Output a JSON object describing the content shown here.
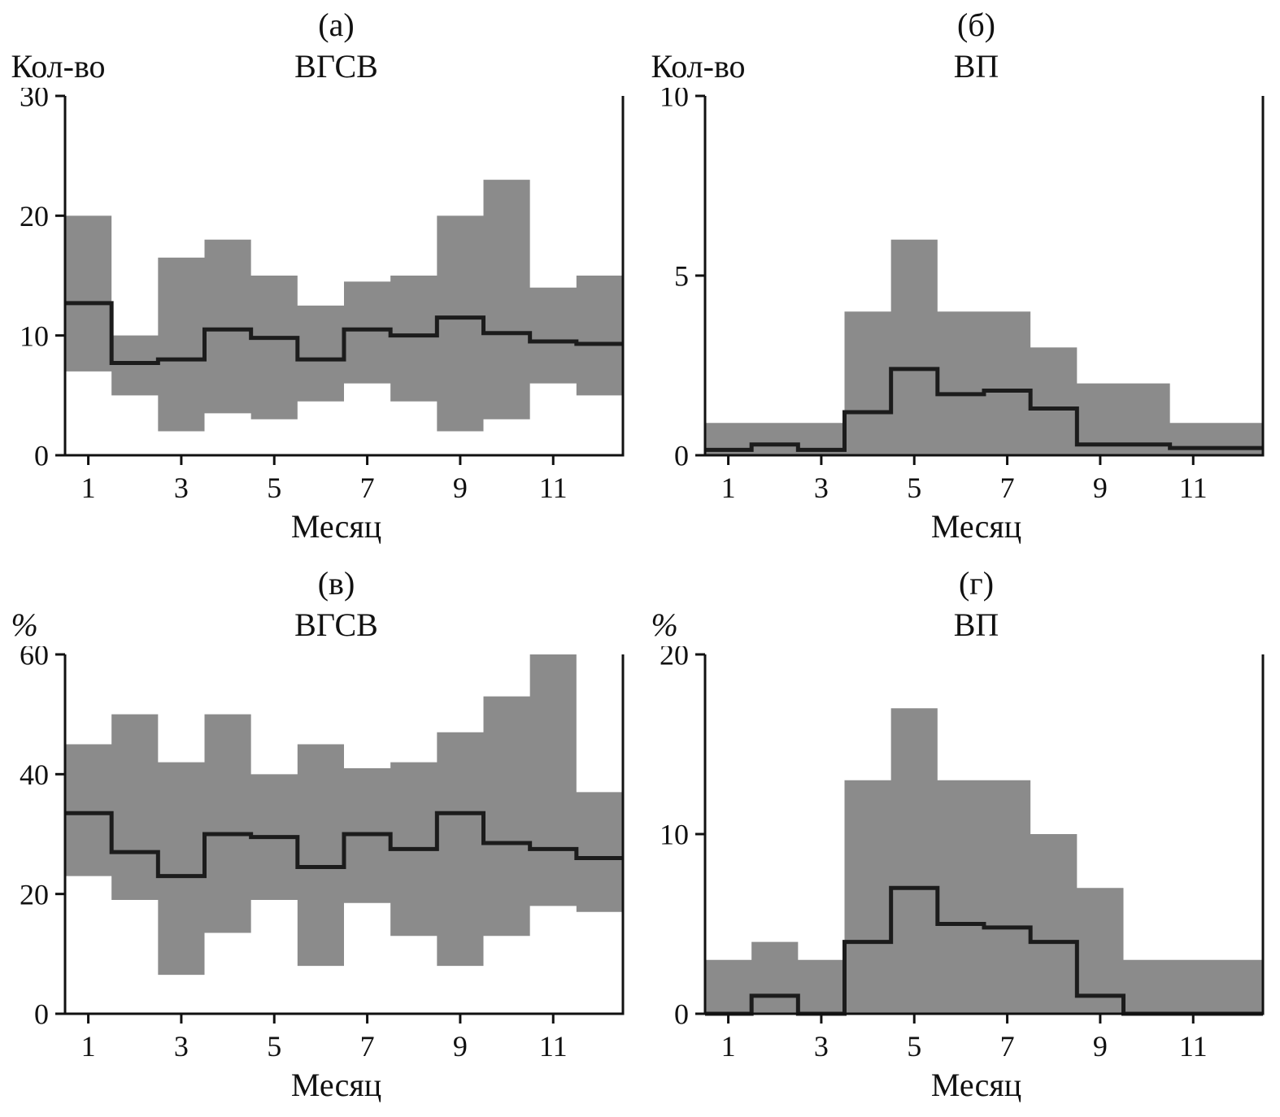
{
  "colors": {
    "band": "#8b8b8b",
    "line": "#1c1c1c",
    "axis": "#111111"
  },
  "chart_data": [
    {
      "type": "area",
      "panel_label": "(а)",
      "title": "ВГСВ",
      "ylabel": "Кол-во",
      "xlabel": "Месяц",
      "x": [
        1,
        2,
        3,
        4,
        5,
        6,
        7,
        8,
        9,
        10,
        11,
        12
      ],
      "xlim": [
        0.5,
        12.5
      ],
      "ylim": [
        0,
        30
      ],
      "yticks": [
        0,
        10,
        20,
        30
      ],
      "xticks": [
        1,
        3,
        5,
        7,
        9,
        11
      ],
      "upper": [
        20,
        10,
        16.5,
        18,
        15,
        12.5,
        14.5,
        15,
        20,
        23,
        14,
        15
      ],
      "mean": [
        12.7,
        7.7,
        8.0,
        10.5,
        9.8,
        8.0,
        10.5,
        10.0,
        11.5,
        10.2,
        9.5,
        9.3
      ],
      "lower": [
        7,
        5,
        2,
        3.5,
        3,
        4.5,
        6,
        4.5,
        2,
        3,
        6,
        5
      ]
    },
    {
      "type": "area",
      "panel_label": "(б)",
      "title": "ВП",
      "ylabel": "Кол-во",
      "xlabel": "Месяц",
      "x": [
        1,
        2,
        3,
        4,
        5,
        6,
        7,
        8,
        9,
        10,
        11,
        12
      ],
      "xlim": [
        0.5,
        12.5
      ],
      "ylim": [
        0,
        10
      ],
      "yticks": [
        0,
        5,
        10
      ],
      "xticks": [
        1,
        3,
        5,
        7,
        9,
        11
      ],
      "upper": [
        0.9,
        0.9,
        0.9,
        4,
        6,
        4,
        4,
        3,
        2,
        2,
        0.9,
        0.9
      ],
      "mean": [
        0.15,
        0.3,
        0.15,
        1.2,
        2.4,
        1.7,
        1.8,
        1.3,
        0.3,
        0.3,
        0.2,
        0.2
      ],
      "lower": [
        0,
        0,
        0,
        0,
        0,
        0,
        0,
        0,
        0,
        0,
        0,
        0
      ]
    },
    {
      "type": "area",
      "panel_label": "(в)",
      "title": "ВГСВ",
      "ylabel": "%",
      "xlabel": "Месяц",
      "x": [
        1,
        2,
        3,
        4,
        5,
        6,
        7,
        8,
        9,
        10,
        11,
        12
      ],
      "xlim": [
        0.5,
        12.5
      ],
      "ylim": [
        0,
        60
      ],
      "yticks": [
        0,
        20,
        40,
        60
      ],
      "xticks": [
        1,
        3,
        5,
        7,
        9,
        11
      ],
      "upper": [
        45,
        50,
        42,
        50,
        40,
        45,
        41,
        42,
        47,
        53,
        60,
        37
      ],
      "mean": [
        33.5,
        27,
        23,
        30,
        29.5,
        24.5,
        30,
        27.5,
        33.5,
        28.5,
        27.5,
        26
      ],
      "lower": [
        23,
        19,
        6.5,
        13.5,
        19,
        8,
        18.5,
        13,
        8,
        13,
        18,
        17
      ]
    },
    {
      "type": "area",
      "panel_label": "(г)",
      "title": "ВП",
      "ylabel": "%",
      "xlabel": "Месяц",
      "x": [
        1,
        2,
        3,
        4,
        5,
        6,
        7,
        8,
        9,
        10,
        11,
        12
      ],
      "xlim": [
        0.5,
        12.5
      ],
      "ylim": [
        0,
        20
      ],
      "yticks": [
        0,
        10,
        20
      ],
      "xticks": [
        1,
        3,
        5,
        7,
        9,
        11
      ],
      "upper": [
        3,
        4,
        3,
        13,
        17,
        13,
        13,
        10,
        7,
        3,
        3,
        3
      ],
      "mean": [
        0,
        1,
        0,
        4,
        7,
        5,
        4.8,
        4,
        1,
        0,
        0,
        0
      ],
      "lower": [
        0,
        0,
        0,
        0,
        0,
        0,
        0,
        0,
        0,
        0,
        0,
        0
      ]
    }
  ]
}
